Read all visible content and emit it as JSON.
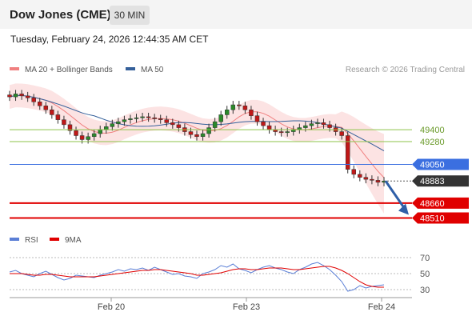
{
  "header": {
    "title": "Dow Jones (CME)",
    "timeframe": "30 MIN",
    "timestamp": "Tuesday, February 24, 2026 12:44:35 AM CET"
  },
  "chart_data": [
    {
      "type": "candlestick",
      "legend": [
        {
          "label": "MA 20 + Bollinger Bands",
          "color": "#f08080"
        },
        {
          "label": "MA 50",
          "color": "#35609a"
        }
      ],
      "credit": "Research © 2026 Trading Central",
      "ylim": [
        48450,
        49900
      ],
      "levels": [
        {
          "label": "49400",
          "value": 49400,
          "color": "#8ec34a",
          "style": "thin"
        },
        {
          "label": "49280",
          "value": 49280,
          "color": "#8ec34a",
          "style": "thin"
        },
        {
          "label": "49050",
          "value": 49050,
          "color": "#3b6fe0",
          "style": "line"
        },
        {
          "label": "48883",
          "value": 48883,
          "color": "#333333",
          "style": "current"
        },
        {
          "label": "48660",
          "value": 48660,
          "color": "#e00000",
          "style": "bold"
        },
        {
          "label": "48510",
          "value": 48510,
          "color": "#e00000",
          "style": "bold"
        }
      ],
      "candles_close": [
        49730,
        49760,
        49740,
        49720,
        49680,
        49640,
        49600,
        49550,
        49500,
        49450,
        49390,
        49340,
        49300,
        49330,
        49360,
        49400,
        49430,
        49460,
        49480,
        49500,
        49510,
        49520,
        49530,
        49520,
        49510,
        49500,
        49470,
        49450,
        49420,
        49380,
        49350,
        49330,
        49360,
        49420,
        49480,
        49550,
        49600,
        49650,
        49640,
        49600,
        49540,
        49480,
        49440,
        49400,
        49380,
        49370,
        49380,
        49400,
        49420,
        49440,
        49460,
        49470,
        49450,
        49420,
        49380,
        49340,
        49000,
        48950,
        48920,
        48900,
        48890,
        48870,
        48883
      ],
      "forecast_target": 48510
    },
    {
      "type": "line",
      "legend": [
        {
          "label": "RSI",
          "color": "#5b7fd6"
        },
        {
          "label": "9MA",
          "color": "#e00000"
        }
      ],
      "ylim": [
        20,
        80
      ],
      "y_ticks": [
        "70",
        "50",
        "30"
      ],
      "x_ticks": [
        "Feb 20",
        "Feb 23",
        "Feb 24"
      ],
      "rsi": [
        52,
        54,
        50,
        48,
        46,
        50,
        53,
        49,
        45,
        42,
        44,
        48,
        47,
        46,
        45,
        48,
        50,
        52,
        55,
        53,
        56,
        55,
        57,
        54,
        58,
        55,
        52,
        49,
        50,
        47,
        46,
        44,
        50,
        52,
        55,
        60,
        58,
        62,
        56,
        54,
        51,
        55,
        58,
        60,
        57,
        55,
        52,
        50,
        55,
        58,
        62,
        64,
        60,
        55,
        48,
        40,
        28,
        30,
        35,
        32,
        34,
        35,
        36
      ],
      "ma9": [
        50,
        50,
        50,
        49,
        48,
        48,
        49,
        49,
        48,
        47,
        46,
        46,
        46,
        46,
        46,
        47,
        48,
        49,
        50,
        51,
        52,
        53,
        54,
        54,
        55,
        55,
        54,
        53,
        52,
        51,
        50,
        48,
        48,
        49,
        50,
        51,
        53,
        55,
        56,
        56,
        55,
        55,
        56,
        57,
        57,
        57,
        56,
        55,
        55,
        56,
        57,
        58,
        59,
        59,
        57,
        54,
        50,
        45,
        40,
        36,
        34,
        33,
        33
      ]
    }
  ]
}
